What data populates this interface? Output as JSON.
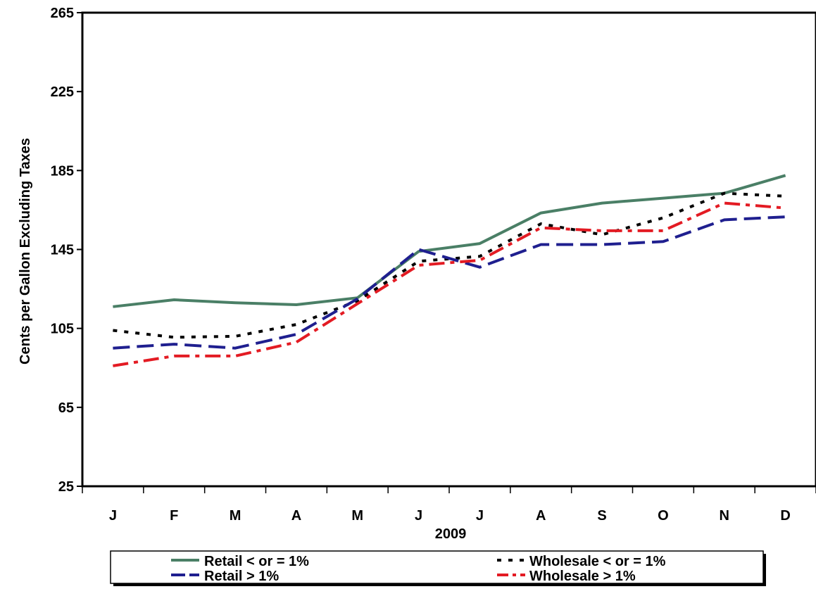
{
  "chart_data": {
    "type": "line",
    "title": "",
    "xlabel": "2009",
    "ylabel": "Cents per Gallon Excluding Taxes",
    "categories": [
      "J",
      "F",
      "M",
      "A",
      "M",
      "J",
      "J",
      "A",
      "S",
      "O",
      "N",
      "D"
    ],
    "ylim": [
      25,
      265
    ],
    "yticks": [
      25,
      65,
      105,
      145,
      185,
      225,
      265
    ],
    "grid": false,
    "legend_position": "bottom",
    "series": [
      {
        "name": "Retail < or = 1%",
        "color": "#4a7f66",
        "style": "solid",
        "values": [
          116,
          119.5,
          118,
          117,
          120.5,
          144,
          148,
          163.5,
          168.5,
          171,
          173.5,
          182.5
        ]
      },
      {
        "name": "Wholesale < or = 1%",
        "color": "#000000",
        "style": "dotted",
        "values": [
          104,
          100.5,
          101,
          107,
          119,
          139,
          141.5,
          158,
          152.5,
          161,
          173.5,
          172
        ]
      },
      {
        "name": "Retail > 1%",
        "color": "#1f1f8f",
        "style": "dashed",
        "values": [
          95,
          97,
          95,
          102,
          120,
          145,
          136,
          147.5,
          147.5,
          149,
          160,
          161.5
        ]
      },
      {
        "name": "Wholesale > 1%",
        "color": "#e31b23",
        "style": "dashdot",
        "values": [
          86,
          91,
          91,
          98,
          117.5,
          137,
          139.5,
          156,
          154.5,
          154.5,
          168.5,
          166
        ]
      }
    ]
  }
}
